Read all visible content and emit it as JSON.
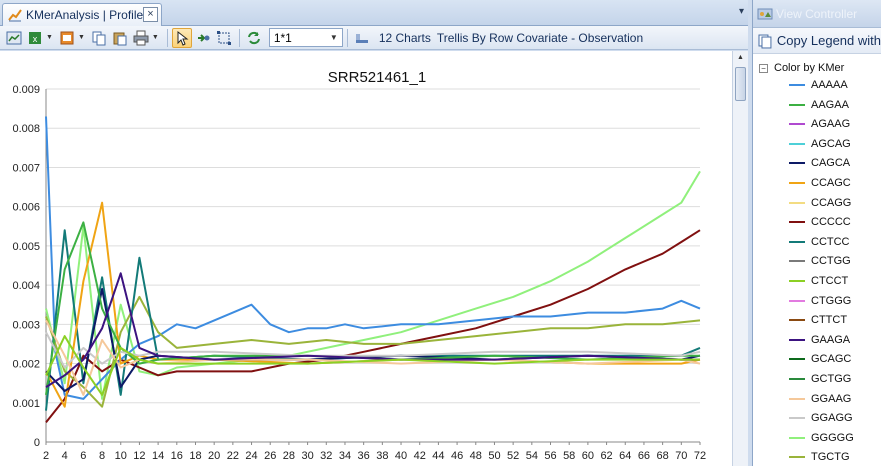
{
  "tab": {
    "title": "KMerAnalysis | Profile",
    "close": "×",
    "overflow": "▾"
  },
  "toolbar": {
    "zoom_value": "1*1",
    "chart_count": "12 Charts",
    "trellis_label": "Trellis By Row Covariate - Observation",
    "icons": [
      "export-icon",
      "excel-icon",
      "image-icon",
      "copy-icon",
      "paste-icon",
      "print-icon",
      "pointer-icon",
      "add-icon",
      "fit-icon",
      "refresh-icon",
      "properties-icon"
    ]
  },
  "panel": {
    "title": "View Controller",
    "copy_legend": "Copy Legend  with",
    "group": "Color by KMer",
    "items": [
      {
        "label": "AAAAA",
        "color": "#3d8ce0"
      },
      {
        "label": "AAGAA",
        "color": "#3cb043"
      },
      {
        "label": "AGAAG",
        "color": "#b04ad0"
      },
      {
        "label": "AGCAG",
        "color": "#4ed0d8"
      },
      {
        "label": "CAGCA",
        "color": "#0d1a66"
      },
      {
        "label": "CCAGC",
        "color": "#f0a414"
      },
      {
        "label": "CCAGG",
        "color": "#f3dc82"
      },
      {
        "label": "CCCCC",
        "color": "#801010"
      },
      {
        "label": "CCTCC",
        "color": "#137a78"
      },
      {
        "label": "CCTGG",
        "color": "#7a7a7a"
      },
      {
        "label": "CTCCT",
        "color": "#8cd024"
      },
      {
        "label": "CTGGG",
        "color": "#e27be0"
      },
      {
        "label": "CTTCT",
        "color": "#8a4a12"
      },
      {
        "label": "GAAGA",
        "color": "#3c1380"
      },
      {
        "label": "GCAGC",
        "color": "#0d6a1c"
      },
      {
        "label": "GCTGG",
        "color": "#2a8a3c"
      },
      {
        "label": "GGAAG",
        "color": "#f5c89a"
      },
      {
        "label": "GGAGG",
        "color": "#c9c9c9"
      },
      {
        "label": "GGGGG",
        "color": "#90f07c"
      },
      {
        "label": "TGCTG",
        "color": "#9ab43a"
      }
    ]
  },
  "chart_data": {
    "type": "line",
    "title": "SRR521461_1",
    "xlabel": "",
    "ylabel": "",
    "xlim": [
      2,
      72
    ],
    "ylim": [
      0,
      0.009
    ],
    "xticks": [
      2,
      4,
      6,
      8,
      10,
      12,
      14,
      16,
      18,
      20,
      22,
      24,
      26,
      28,
      30,
      32,
      34,
      36,
      38,
      40,
      42,
      44,
      46,
      48,
      50,
      52,
      54,
      56,
      58,
      60,
      62,
      64,
      66,
      68,
      70,
      72
    ],
    "yticks": [
      0,
      0.001,
      0.002,
      0.003,
      0.004,
      0.005,
      0.006,
      0.007,
      0.008,
      0.009
    ],
    "ytick_labels": [
      "0",
      "0.001",
      "0.002",
      "0.003",
      "0.004",
      "0.005",
      "0.006",
      "0.007",
      "0.008",
      "0.009"
    ],
    "series": [
      {
        "name": "GGGGG",
        "color": "#90f07c",
        "x": [
          2,
          4,
          6,
          8,
          10,
          12,
          14,
          16,
          20,
          24,
          28,
          32,
          36,
          40,
          44,
          48,
          52,
          56,
          60,
          64,
          68,
          70,
          72
        ],
        "y": [
          0.0034,
          0.0015,
          0.0055,
          0.0011,
          0.0035,
          0.0018,
          0.0017,
          0.0019,
          0.002,
          0.0021,
          0.0022,
          0.0024,
          0.0026,
          0.0028,
          0.0031,
          0.0034,
          0.0037,
          0.0041,
          0.0046,
          0.0052,
          0.0058,
          0.0061,
          0.0069
        ]
      },
      {
        "name": "CCCCC",
        "color": "#801010",
        "x": [
          2,
          4,
          6,
          8,
          10,
          12,
          14,
          16,
          20,
          24,
          28,
          32,
          36,
          40,
          44,
          48,
          52,
          56,
          60,
          64,
          68,
          70,
          72
        ],
        "y": [
          0.0005,
          0.0011,
          0.0022,
          0.0018,
          0.0021,
          0.0019,
          0.0017,
          0.0018,
          0.0018,
          0.0018,
          0.002,
          0.0021,
          0.0023,
          0.0025,
          0.0027,
          0.0029,
          0.0032,
          0.0035,
          0.0039,
          0.0044,
          0.0048,
          0.0051,
          0.0054
        ]
      },
      {
        "name": "AAAAA",
        "color": "#3d8ce0",
        "x": [
          2,
          3,
          4,
          6,
          8,
          10,
          12,
          14,
          16,
          18,
          20,
          22,
          24,
          26,
          28,
          30,
          32,
          34,
          36,
          40,
          44,
          48,
          52,
          56,
          60,
          64,
          68,
          70,
          72
        ],
        "y": [
          0.0083,
          0.0023,
          0.0012,
          0.0011,
          0.0016,
          0.0021,
          0.0025,
          0.0027,
          0.003,
          0.0029,
          0.0031,
          0.0033,
          0.0035,
          0.003,
          0.0028,
          0.0029,
          0.0029,
          0.003,
          0.0029,
          0.003,
          0.003,
          0.0031,
          0.0032,
          0.0032,
          0.0033,
          0.0033,
          0.0034,
          0.0036,
          0.0034
        ]
      },
      {
        "name": "TGCTG",
        "color": "#9ab43a",
        "x": [
          2,
          4,
          6,
          8,
          10,
          12,
          14,
          16,
          20,
          24,
          28,
          32,
          36,
          40,
          44,
          48,
          52,
          56,
          60,
          64,
          68,
          72
        ],
        "y": [
          0.0032,
          0.0018,
          0.0014,
          0.0009,
          0.0028,
          0.0037,
          0.0028,
          0.0024,
          0.0025,
          0.0026,
          0.0025,
          0.0026,
          0.0025,
          0.0025,
          0.0026,
          0.0027,
          0.0028,
          0.0029,
          0.0029,
          0.003,
          0.003,
          0.0031
        ]
      },
      {
        "name": "CCTCC",
        "color": "#137a78",
        "x": [
          2,
          4,
          6,
          8,
          10,
          12,
          14,
          20,
          30,
          40,
          50,
          60,
          70,
          72
        ],
        "y": [
          0.0008,
          0.0054,
          0.0015,
          0.0042,
          0.0012,
          0.0047,
          0.0021,
          0.0022,
          0.0021,
          0.0022,
          0.0022,
          0.0022,
          0.0022,
          0.0024
        ]
      },
      {
        "name": "CCAGC",
        "color": "#f0a414",
        "x": [
          2,
          4,
          6,
          8,
          10,
          12,
          14,
          20,
          30,
          40,
          50,
          60,
          70,
          72
        ],
        "y": [
          0.0018,
          0.0009,
          0.0041,
          0.0061,
          0.002,
          0.0022,
          0.0021,
          0.0021,
          0.002,
          0.0021,
          0.0021,
          0.002,
          0.002,
          0.0021
        ]
      },
      {
        "name": "CAGCA",
        "color": "#0d1a66",
        "x": [
          2,
          4,
          6,
          8,
          10,
          12,
          14,
          20,
          30,
          40,
          50,
          60,
          70,
          72
        ],
        "y": [
          0.0018,
          0.0013,
          0.0016,
          0.0039,
          0.0014,
          0.0021,
          0.0022,
          0.0021,
          0.0021,
          0.0022,
          0.0021,
          0.0022,
          0.0021,
          0.0022
        ]
      },
      {
        "name": "AAGAA",
        "color": "#3cb043",
        "x": [
          2,
          4,
          6,
          8,
          10,
          12,
          14,
          20,
          30,
          40,
          50,
          60,
          70,
          72
        ],
        "y": [
          0.0012,
          0.0044,
          0.0056,
          0.0034,
          0.0024,
          0.002,
          0.0021,
          0.0022,
          0.0022,
          0.0021,
          0.0022,
          0.0021,
          0.0022,
          0.0022
        ]
      },
      {
        "name": "GGAGG",
        "color": "#c9c9c9",
        "x": [
          2,
          4,
          6,
          8,
          10,
          12,
          14,
          20,
          30,
          40,
          50,
          60,
          70,
          72
        ],
        "y": [
          0.0028,
          0.0019,
          0.0024,
          0.002,
          0.0023,
          0.0022,
          0.0023,
          0.0023,
          0.0022,
          0.0022,
          0.0023,
          0.0023,
          0.0022,
          0.0023
        ]
      },
      {
        "name": "GGAAG",
        "color": "#f5c89a",
        "x": [
          2,
          4,
          6,
          8,
          10,
          12,
          14,
          20,
          30,
          40,
          50,
          60,
          70,
          72
        ],
        "y": [
          0.0031,
          0.0022,
          0.0012,
          0.0026,
          0.0019,
          0.0021,
          0.002,
          0.0021,
          0.0021,
          0.002,
          0.0021,
          0.002,
          0.0021,
          0.002
        ]
      },
      {
        "name": "GAAGA",
        "color": "#3c1380",
        "x": [
          2,
          4,
          6,
          8,
          10,
          12,
          14,
          20,
          30,
          40,
          50,
          60,
          70,
          72
        ],
        "y": [
          0.0014,
          0.0017,
          0.0021,
          0.0029,
          0.0043,
          0.0024,
          0.0022,
          0.0021,
          0.0022,
          0.0021,
          0.0021,
          0.0022,
          0.0021,
          0.0021
        ]
      },
      {
        "name": "CTCCT",
        "color": "#8cd024",
        "x": [
          2,
          4,
          6,
          8,
          10,
          12,
          14,
          20,
          30,
          40,
          50,
          60,
          70,
          72
        ],
        "y": [
          0.0017,
          0.0027,
          0.0019,
          0.0012,
          0.0024,
          0.0021,
          0.002,
          0.002,
          0.002,
          0.0021,
          0.002,
          0.0021,
          0.0021,
          0.0021
        ]
      }
    ]
  }
}
